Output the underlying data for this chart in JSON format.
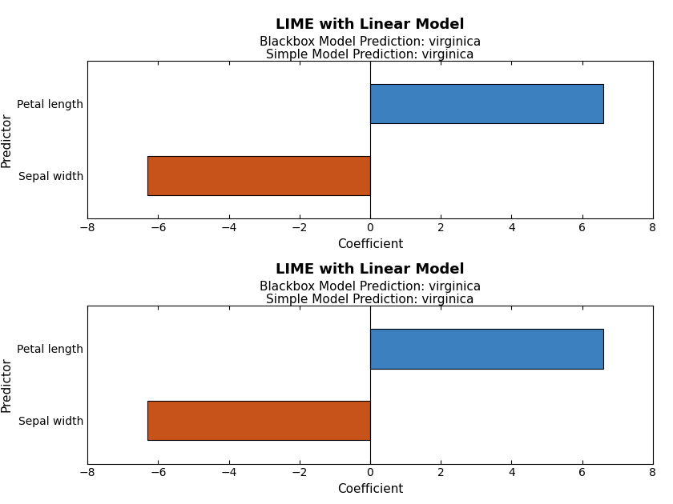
{
  "predictors": [
    "Petal length",
    "Sepal width"
  ],
  "values": [
    6.6,
    -6.3
  ],
  "colors": [
    "#3d80bf",
    "#c8531a"
  ],
  "title": "LIME with Linear Model",
  "subtitle1": "Blackbox Model Prediction: virginica",
  "subtitle2": "Simple Model Prediction: virginica",
  "xlabel": "Coefficient",
  "ylabel": "Predictor",
  "xlim": [
    -8,
    8
  ],
  "xticks": [
    -8,
    -6,
    -4,
    -2,
    0,
    2,
    4,
    6,
    8
  ],
  "title_fontsize": 13,
  "subtitle_fontsize": 11,
  "label_fontsize": 11,
  "tick_fontsize": 10,
  "bar_height": 0.55
}
